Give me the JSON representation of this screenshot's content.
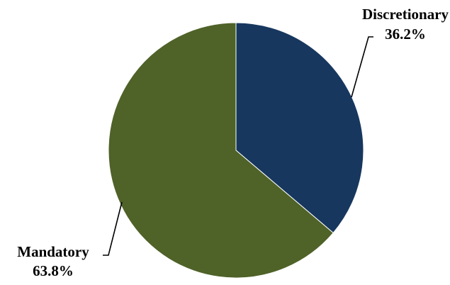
{
  "chart_data": {
    "type": "pie",
    "slices": [
      {
        "label": "Discretionary",
        "percent_label": "36.2%",
        "value": 36.2,
        "color": "#17375e"
      },
      {
        "label": "Mandatory",
        "percent_label": "63.8%",
        "value": 63.8,
        "color": "#4f6228"
      }
    ],
    "start_angle": "12 o'clock",
    "direction": "clockwise",
    "legend": "none",
    "data_labels": "outside with leader lines"
  }
}
